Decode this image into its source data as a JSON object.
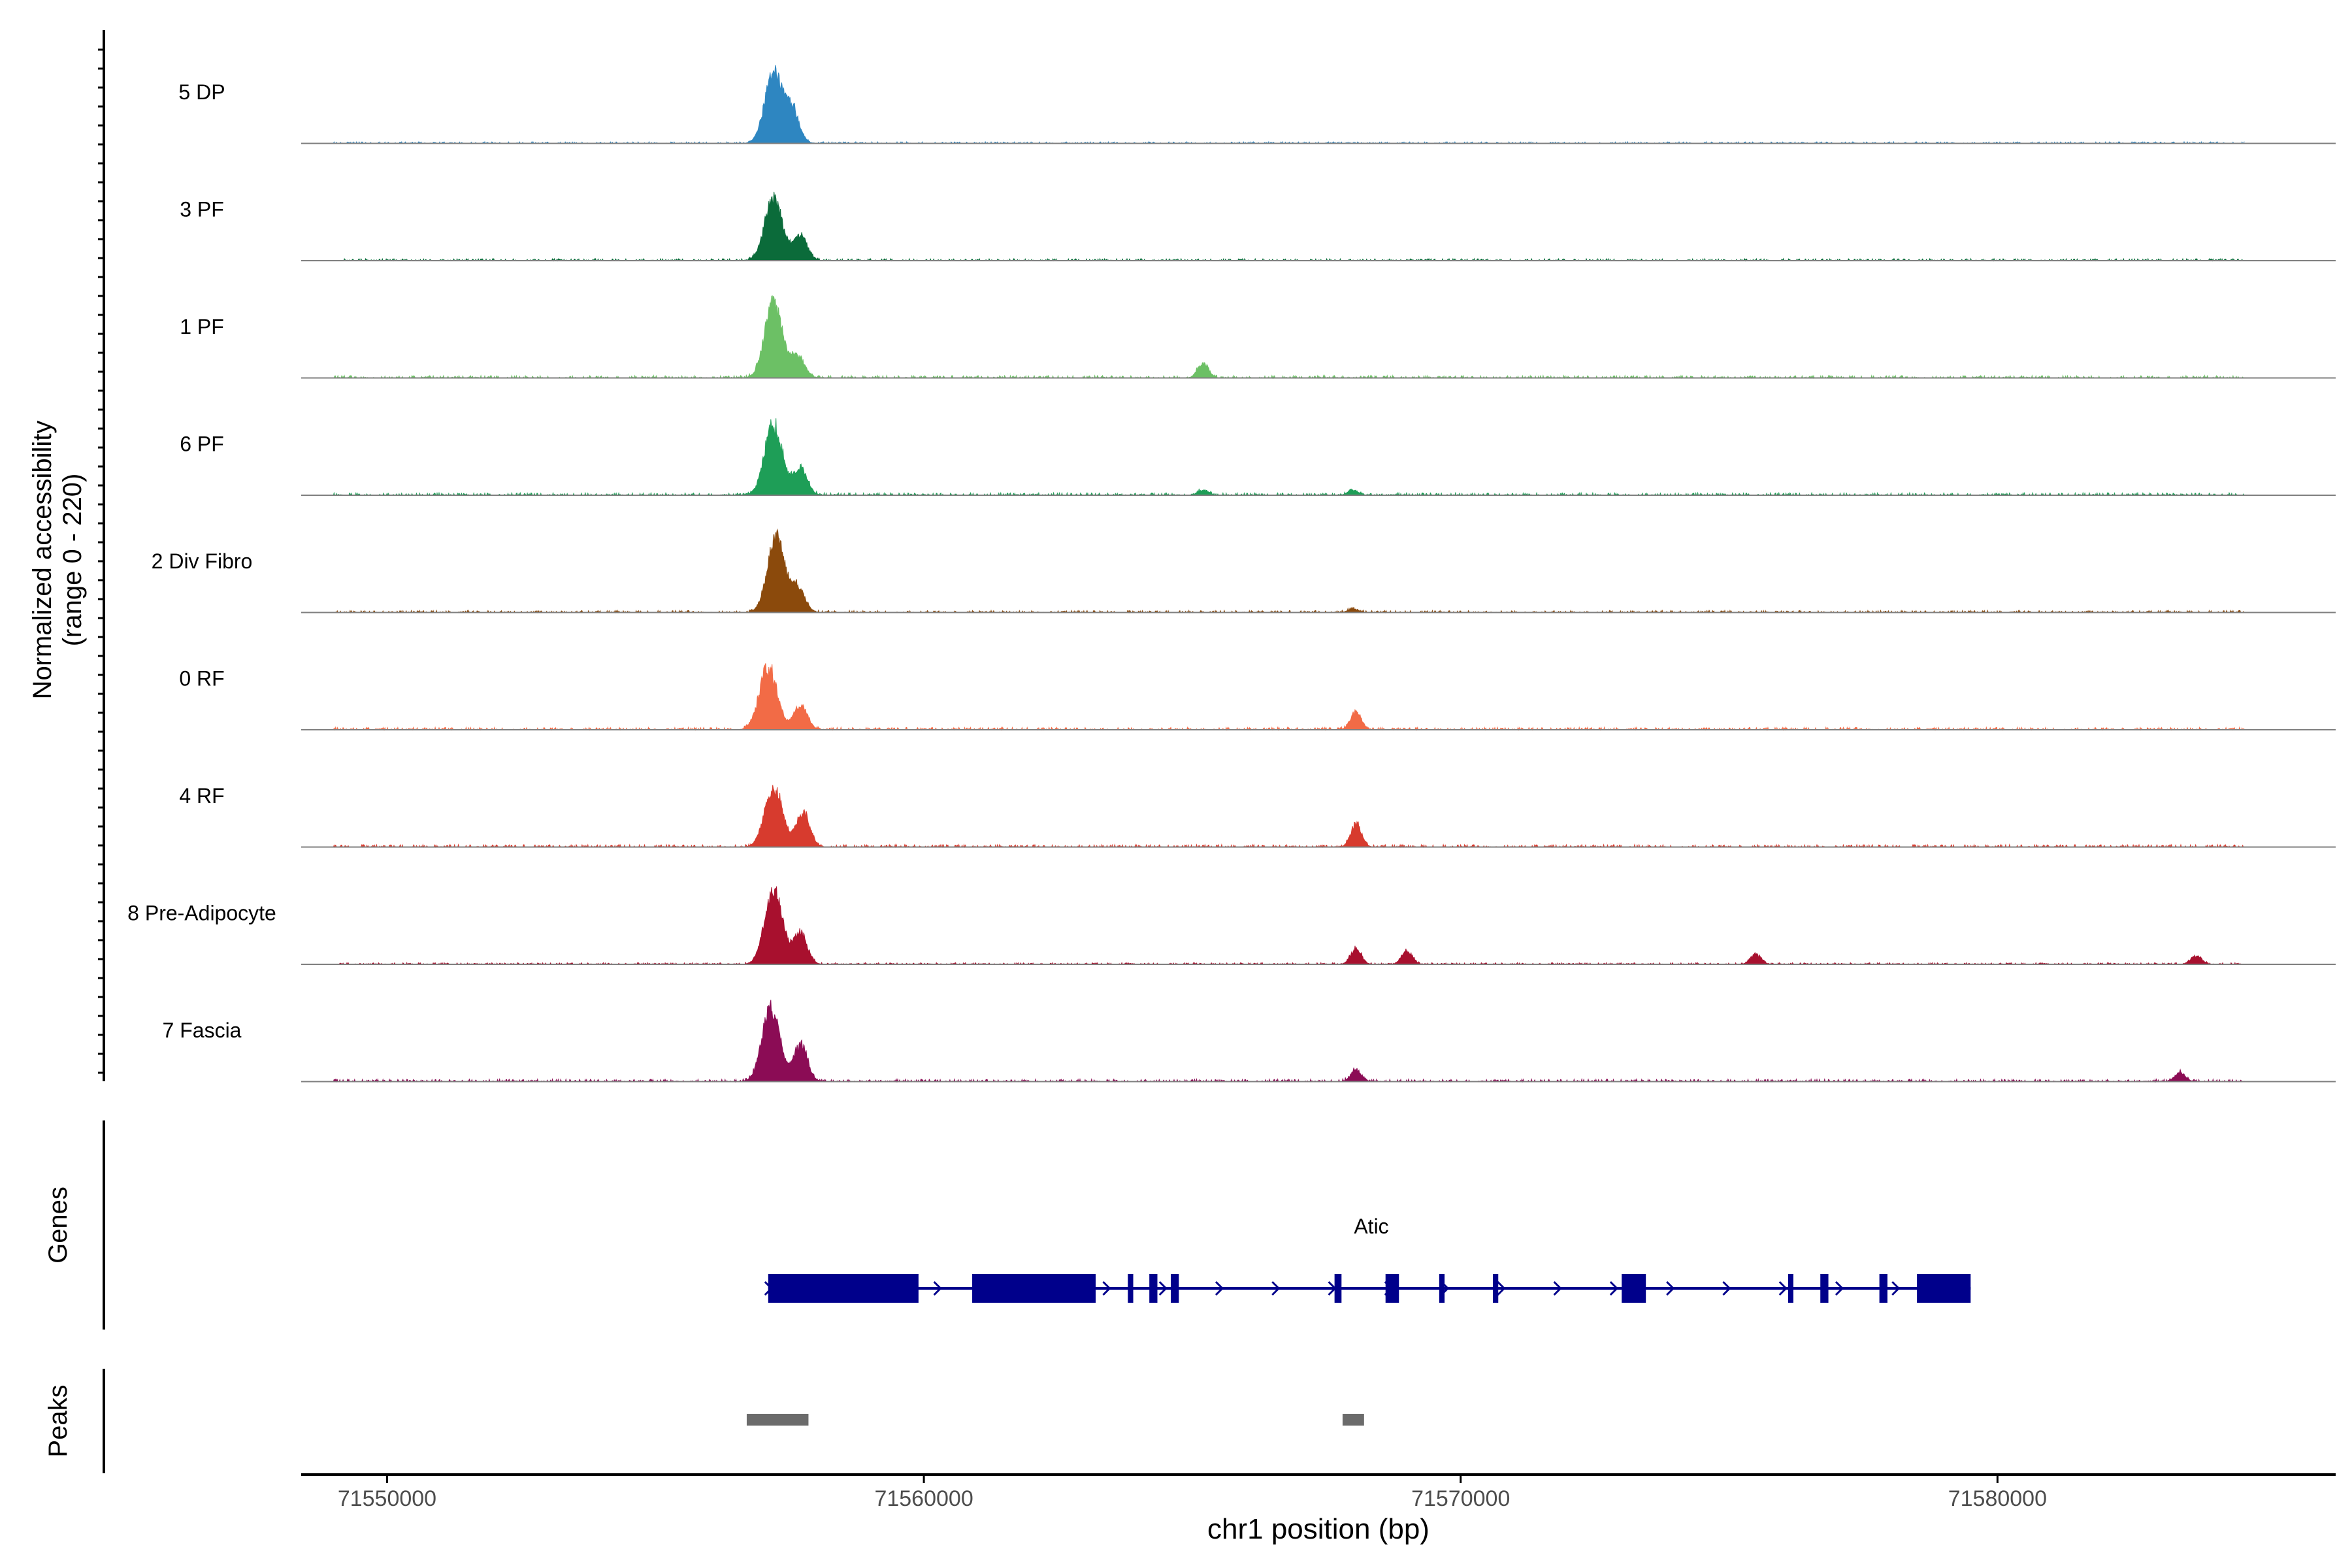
{
  "chart_data": {
    "type": "area",
    "title": "",
    "coverage_panel": {
      "ylabel_line1": "Normalized accessibility",
      "ylabel_line2": "(range 0 - 220)",
      "yrange": [
        0,
        220
      ],
      "tracks": [
        {
          "label": "5 DP",
          "color": "#2E86C1",
          "peaks": [
            [
              71557200,
              200
            ],
            [
              71557550,
              95
            ]
          ],
          "baseline": 4,
          "minor": []
        },
        {
          "label": "3 PF",
          "color": "#0B6B3A",
          "peaks": [
            [
              71557200,
              180
            ],
            [
              71557700,
              70
            ]
          ],
          "baseline": 5,
          "minor": []
        },
        {
          "label": "1 PF",
          "color": "#6CC065",
          "peaks": [
            [
              71557200,
              220
            ],
            [
              71557650,
              60
            ]
          ],
          "baseline": 6,
          "minor": [
            [
              71565200,
              45
            ]
          ]
        },
        {
          "label": "6 PF",
          "color": "#1E9E57",
          "peaks": [
            [
              71557200,
              205
            ],
            [
              71557700,
              80
            ]
          ],
          "baseline": 6,
          "minor": [
            [
              71565200,
              15
            ],
            [
              71568000,
              15
            ]
          ]
        },
        {
          "label": "2 Div Fibro",
          "color": "#8B4A0C",
          "peaks": [
            [
              71557250,
              215
            ],
            [
              71557650,
              70
            ]
          ],
          "baseline": 5,
          "minor": [
            [
              71568000,
              10
            ]
          ]
        },
        {
          "label": "0 RF",
          "color": "#F26B46",
          "peaks": [
            [
              71557100,
              180
            ],
            [
              71557700,
              70
            ]
          ],
          "baseline": 6,
          "minor": [
            [
              71568050,
              55
            ]
          ]
        },
        {
          "label": "4 RF",
          "color": "#D73B2E",
          "peaks": [
            [
              71557200,
              175
            ],
            [
              71557750,
              100
            ]
          ],
          "baseline": 6,
          "minor": [
            [
              71568050,
              70
            ]
          ]
        },
        {
          "label": "8 Pre-Adipocyte",
          "color": "#A8102E",
          "peaks": [
            [
              71557200,
              220
            ],
            [
              71557700,
              90
            ]
          ],
          "baseline": 4,
          "minor": [
            [
              71568050,
              45
            ],
            [
              71569000,
              40
            ],
            [
              71575500,
              30
            ],
            [
              71583700,
              25
            ]
          ]
        },
        {
          "label": "7 Fascia",
          "color": "#8B0C55",
          "peaks": [
            [
              71557150,
              215
            ],
            [
              71557700,
              110
            ]
          ],
          "baseline": 6,
          "minor": [
            [
              71568050,
              35
            ],
            [
              71583400,
              25
            ]
          ]
        }
      ]
    },
    "genes_panel": {
      "ylabel": "Genes",
      "gene_name": "Atic",
      "strand": "+",
      "intron_span": [
        71557100,
        71579500
      ],
      "exons": [
        [
          71557100,
          71559900
        ],
        [
          71560900,
          71563200
        ],
        [
          71563800,
          71563900
        ],
        [
          71564200,
          71564350
        ],
        [
          71564600,
          71564750
        ],
        [
          71567650,
          71567780
        ],
        [
          71568600,
          71568850
        ],
        [
          71569600,
          71569700
        ],
        [
          71570600,
          71570700
        ],
        [
          71573000,
          71573450
        ],
        [
          71576100,
          71576180
        ],
        [
          71576700,
          71576850
        ],
        [
          71577800,
          71577950
        ],
        [
          71578500,
          71579500
        ]
      ]
    },
    "peaks_panel": {
      "ylabel": "Peaks",
      "peaks": [
        [
          71556700,
          71557850
        ],
        [
          71567800,
          71568200
        ]
      ]
    },
    "x_axis": {
      "xlabel": "chr1 position (bp)",
      "range": [
        71548400,
        71586300
      ],
      "ticks": [
        71550000,
        71560000,
        71570000,
        71580000
      ],
      "tick_labels": [
        "71550000",
        "71560000",
        "71570000",
        "71580000"
      ]
    },
    "colors": {
      "axis": "#000000",
      "baseline": "#7f7f7f",
      "gene": "#00008B",
      "peak": "#6b6b6b",
      "tick_text": "#4d4d4d"
    }
  }
}
